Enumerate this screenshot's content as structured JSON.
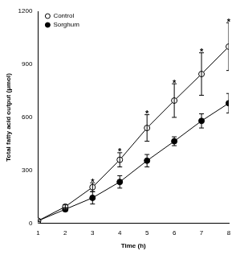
{
  "chart_data": {
    "type": "line",
    "x_label": "Time (h)",
    "y_label": "Total fatty acid output (μmol)",
    "x": [
      1,
      2,
      3,
      4,
      5,
      6,
      7,
      8
    ],
    "series": [
      {
        "name": "Control",
        "color": "#000000",
        "marker": "open_circle",
        "line_style": "solid",
        "values": [
          15,
          95,
          205,
          360,
          540,
          695,
          845,
          1000
        ],
        "errors": [
          5,
          10,
          25,
          40,
          75,
          95,
          120,
          135
        ]
      },
      {
        "name": "Sorghum",
        "color": "#000000",
        "marker": "filled_circle",
        "line_style": "solid",
        "values": [
          15,
          80,
          145,
          235,
          355,
          465,
          580,
          680
        ],
        "errors": [
          5,
          10,
          35,
          35,
          35,
          25,
          40,
          55
        ]
      }
    ],
    "annotations": [
      {
        "x": 3,
        "text": "*"
      },
      {
        "x": 4,
        "text": "*"
      },
      {
        "x": 5,
        "text": "*"
      },
      {
        "x": 6,
        "text": "*"
      },
      {
        "x": 7,
        "text": "*"
      },
      {
        "x": 8,
        "text": "*"
      }
    ],
    "xlim": [
      1,
      8
    ],
    "xticks": [
      1,
      2,
      3,
      4,
      5,
      6,
      7,
      8
    ],
    "ylim": [
      0,
      1200
    ],
    "yticks": [
      0,
      300,
      600,
      900,
      1200
    ],
    "grid": false,
    "legend": "upper left"
  }
}
